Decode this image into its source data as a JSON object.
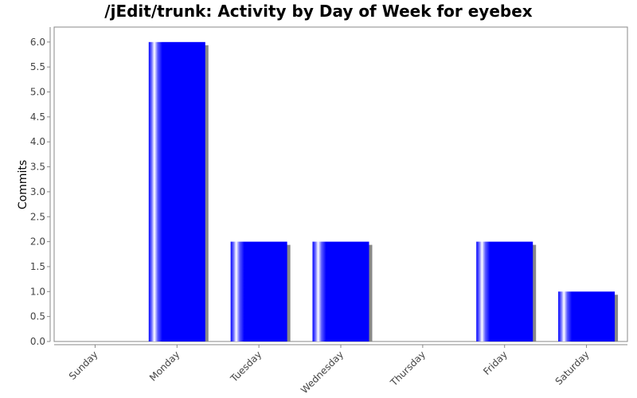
{
  "chart_data": {
    "type": "bar",
    "title": "/jEdit/trunk: Activity by Day of Week for eyebex",
    "xlabel": "",
    "ylabel": "Commits",
    "categories": [
      "Sunday",
      "Monday",
      "Tuesday",
      "Wednesday",
      "Thursday",
      "Friday",
      "Saturday"
    ],
    "values": [
      0,
      6,
      2,
      2,
      0,
      2,
      1
    ],
    "ylim": [
      0,
      6.3
    ],
    "yticks": [
      "0.0",
      "0.5",
      "1.0",
      "1.5",
      "2.0",
      "2.5",
      "3.0",
      "3.5",
      "4.0",
      "4.5",
      "5.0",
      "5.5",
      "6.0"
    ],
    "grid": false,
    "legend": "none",
    "colors": {
      "bar": "#0000ff",
      "shadow": "#888888",
      "axis": "#888888"
    }
  }
}
